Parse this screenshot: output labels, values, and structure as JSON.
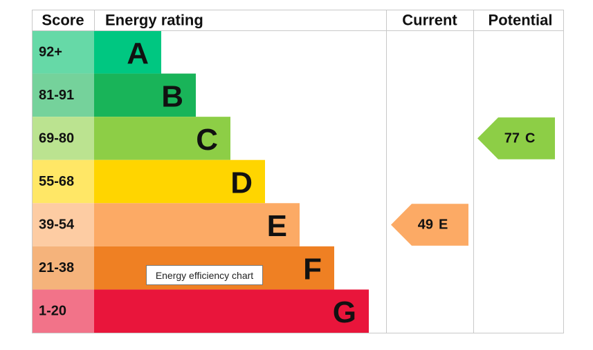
{
  "header": {
    "score": "Score",
    "rating": "Energy rating",
    "current": "Current",
    "potential": "Potential"
  },
  "bands": [
    {
      "score": "92+",
      "letter": "A"
    },
    {
      "score": "81-91",
      "letter": "B"
    },
    {
      "score": "69-80",
      "letter": "C"
    },
    {
      "score": "55-68",
      "letter": "D"
    },
    {
      "score": "39-54",
      "letter": "E"
    },
    {
      "score": "21-38",
      "letter": "F"
    },
    {
      "score": "1-20",
      "letter": "G"
    }
  ],
  "current": {
    "value": 49,
    "letter": "E"
  },
  "potential": {
    "value": 77,
    "letter": "C"
  },
  "tooltip": "Energy efficiency chart"
}
